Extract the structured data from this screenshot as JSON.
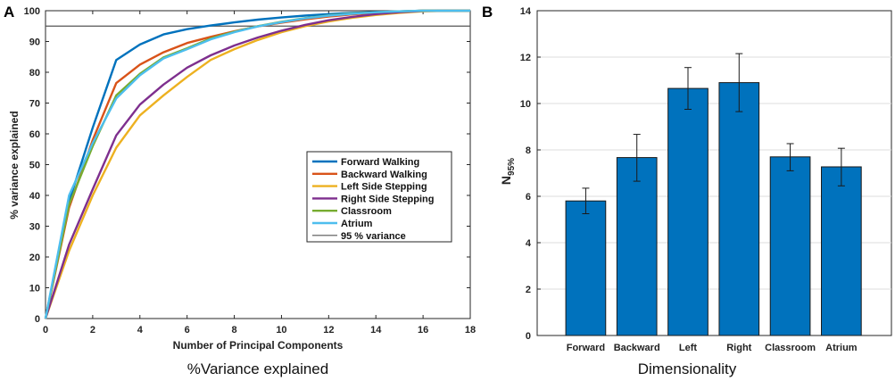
{
  "chart_data": [
    {
      "panel_label": "A",
      "type": "line",
      "caption": "%Variance explained",
      "xlabel": "Number of Principal Components",
      "ylabel": "% variance explained",
      "xlim": [
        0,
        18
      ],
      "ylim": [
        0,
        100
      ],
      "x_ticks": [
        "0",
        "2",
        "4",
        "6",
        "8",
        "10",
        "12",
        "14",
        "16",
        "18"
      ],
      "y_ticks": [
        "0",
        "10",
        "20",
        "30",
        "40",
        "50",
        "60",
        "70",
        "80",
        "90",
        "100"
      ],
      "grid": false,
      "legend_position": "right-middle",
      "x": [
        0,
        1,
        2,
        3,
        4,
        5,
        6,
        7,
        8,
        9,
        10,
        11,
        12,
        13,
        14,
        15,
        16,
        17,
        18
      ],
      "series": [
        {
          "name": "Forward Walking",
          "color": "#0072BD",
          "values": [
            0,
            38,
            62,
            84,
            89,
            92.3,
            94,
            95.2,
            96.2,
            97.1,
            97.8,
            98.4,
            98.9,
            99.3,
            99.6,
            99.8,
            100,
            100,
            100
          ]
        },
        {
          "name": "Backward Walking",
          "color": "#D95319",
          "values": [
            0,
            36,
            58,
            76.5,
            82.5,
            86.5,
            89.5,
            91.5,
            93.3,
            94.9,
            96.1,
            97.2,
            98.1,
            98.8,
            99.3,
            99.7,
            100,
            100,
            100
          ]
        },
        {
          "name": "Left Side Stepping",
          "color": "#EDB120",
          "values": [
            0,
            22,
            40,
            55.5,
            66,
            72.5,
            78.5,
            84,
            87.5,
            90.5,
            93,
            95,
            96.5,
            97.7,
            98.6,
            99.3,
            99.8,
            100,
            100
          ]
        },
        {
          "name": "Right Side Stepping",
          "color": "#7E2F8E",
          "values": [
            0,
            24,
            42,
            59.5,
            69.5,
            76,
            81.5,
            85.5,
            88.7,
            91.3,
            93.5,
            95.4,
            96.9,
            98,
            98.9,
            99.5,
            99.9,
            100,
            100
          ]
        },
        {
          "name": "Classroom",
          "color": "#77AC30",
          "values": [
            0,
            37,
            56,
            72.5,
            79.5,
            84.8,
            87.8,
            91,
            93.2,
            95,
            96.4,
            97.6,
            98.5,
            99.1,
            99.5,
            99.8,
            100,
            100,
            100
          ]
        },
        {
          "name": "Atrium",
          "color": "#4DBEEE",
          "values": [
            0,
            40,
            57,
            71.5,
            79,
            84.5,
            87.5,
            90.7,
            93,
            94.9,
            96.3,
            97.5,
            98.4,
            99,
            99.5,
            99.8,
            100,
            100,
            100
          ]
        }
      ],
      "reference_line": {
        "name": "95 % variance",
        "value": 95,
        "color": "#555555"
      }
    },
    {
      "panel_label": "B",
      "type": "bar",
      "caption": "Dimensionality",
      "ylabel_main": "N",
      "ylabel_sub": "95%",
      "ylim": [
        0,
        14
      ],
      "y_ticks": [
        "0",
        "2",
        "4",
        "6",
        "8",
        "10",
        "12",
        "14"
      ],
      "grid": true,
      "bar_color": "#0072BD",
      "categories": [
        "Forward",
        "Backward",
        "Left",
        "Right",
        "Classroom",
        "Atrium"
      ],
      "values": [
        5.8,
        7.67,
        10.65,
        10.9,
        7.7,
        7.27
      ],
      "error_low": [
        5.25,
        6.65,
        9.75,
        9.65,
        7.1,
        6.45
      ],
      "error_high": [
        6.35,
        8.67,
        11.55,
        12.15,
        8.27,
        8.07
      ]
    }
  ]
}
